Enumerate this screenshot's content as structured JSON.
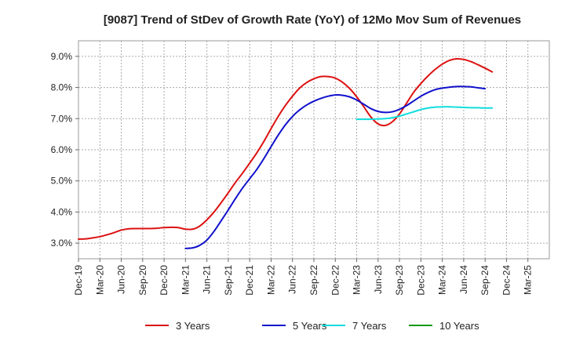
{
  "chart_data": {
    "type": "line",
    "title": "[9087]  Trend of StDev of Growth Rate (YoY) of 12Mo Mov Sum of Revenues",
    "xlabel": "",
    "ylabel": "",
    "ylim": [
      2.5,
      9.5
    ],
    "yticks": [
      3.0,
      4.0,
      5.0,
      6.0,
      7.0,
      8.0,
      9.0
    ],
    "ytick_labels": [
      "3.0%",
      "4.0%",
      "5.0%",
      "6.0%",
      "7.0%",
      "8.0%",
      "9.0%"
    ],
    "xtick_labels": [
      "Dec-19",
      "Mar-20",
      "Jun-20",
      "Sep-20",
      "Dec-20",
      "Mar-21",
      "Jun-21",
      "Sep-21",
      "Dec-21",
      "Mar-22",
      "Jun-22",
      "Sep-22",
      "Dec-22",
      "Mar-23",
      "Jun-23",
      "Sep-23",
      "Dec-23",
      "Mar-24",
      "Jun-24",
      "Sep-24",
      "Dec-24",
      "Mar-25"
    ],
    "grid": true,
    "legend_position": "bottom",
    "series": [
      {
        "name": "3 Years",
        "color": "#dd1111",
        "start_index": 0,
        "values": [
          3.13,
          3.14,
          3.17,
          3.21,
          3.27,
          3.34,
          3.42,
          3.46,
          3.47,
          3.47,
          3.47,
          3.48,
          3.5,
          3.51,
          3.5,
          3.45,
          3.45,
          3.55,
          3.75,
          4.0,
          4.3,
          4.62,
          4.95,
          5.25,
          5.57,
          5.9,
          6.27,
          6.68,
          7.07,
          7.42,
          7.72,
          7.98,
          8.16,
          8.28,
          8.35,
          8.35,
          8.3,
          8.17,
          7.97,
          7.7,
          7.38,
          7.05,
          6.83,
          6.78,
          6.9,
          7.15,
          7.5,
          7.85,
          8.13,
          8.37,
          8.58,
          8.75,
          8.87,
          8.92,
          8.9,
          8.83,
          8.73,
          8.62,
          8.5
        ]
      },
      {
        "name": "5 Years",
        "color": "#1111cc",
        "start_index": 15,
        "values": [
          2.83,
          2.85,
          2.93,
          3.1,
          3.38,
          3.72,
          4.07,
          4.43,
          4.77,
          5.07,
          5.37,
          5.72,
          6.1,
          6.47,
          6.8,
          7.07,
          7.28,
          7.44,
          7.56,
          7.65,
          7.72,
          7.76,
          7.75,
          7.7,
          7.6,
          7.46,
          7.32,
          7.23,
          7.2,
          7.22,
          7.3,
          7.42,
          7.57,
          7.72,
          7.84,
          7.93,
          7.98,
          8.01,
          8.03,
          8.03,
          8.02,
          7.99,
          7.96
        ]
      },
      {
        "name": "7 Years",
        "color": "#11dddd",
        "start_index": 39,
        "values": [
          6.98,
          6.98,
          6.98,
          6.99,
          7.0,
          7.03,
          7.08,
          7.15,
          7.22,
          7.29,
          7.34,
          7.37,
          7.38,
          7.38,
          7.37,
          7.36,
          7.35,
          7.35,
          7.34,
          7.34
        ]
      },
      {
        "name": "10 Years",
        "color": "#119911",
        "start_index": 0,
        "values": []
      }
    ]
  }
}
